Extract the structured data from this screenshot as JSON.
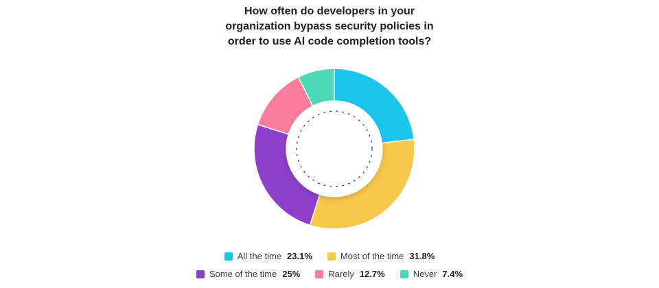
{
  "chart_data": {
    "type": "pie",
    "title_lines": [
      "How often do developers in your",
      "organization bypass security policies in",
      "order to use AI code completion tools?"
    ],
    "categories": [
      "All the time",
      "Most of the time",
      "Some of the time",
      "Rarely",
      "Never"
    ],
    "values": [
      23.1,
      31.8,
      25,
      12.7,
      7.4
    ],
    "value_labels": [
      "23.1%",
      "31.8%",
      "25%",
      "12.7%",
      "7.4%"
    ],
    "colors": [
      "#1bc5ec",
      "#f8c74b",
      "#8e3fcc",
      "#fa7d9b",
      "#4dd8b7"
    ],
    "style": "donut",
    "legend_position": "bottom"
  }
}
